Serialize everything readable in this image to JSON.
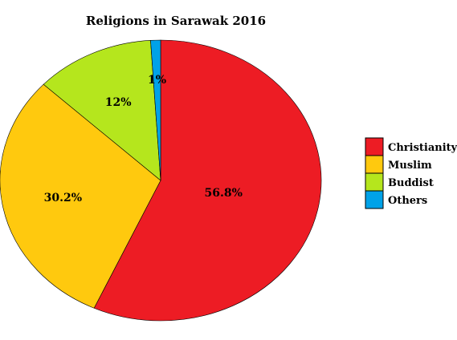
{
  "chart_data": {
    "type": "pie",
    "title": "Religions in Sarawak 2016",
    "series": [
      {
        "name": "Christianity",
        "value": 56.8,
        "label": "56.8%",
        "color": "#ed1c24"
      },
      {
        "name": "Muslim",
        "value": 30.2,
        "label": "30.2%",
        "color": "#ffc90e"
      },
      {
        "name": "Buddist",
        "value": 12,
        "label": "12%",
        "color": "#b5e61d"
      },
      {
        "name": "Others",
        "value": 1,
        "label": "1%",
        "color": "#00a2e8"
      }
    ],
    "legend_position": "right",
    "start_angle": "top",
    "direction": "clockwise"
  }
}
